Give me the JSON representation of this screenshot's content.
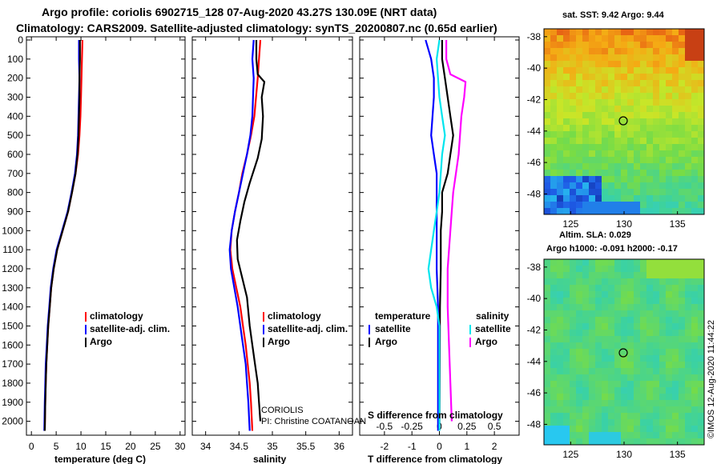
{
  "title_line1": "Argo profile: coriolis 6902715_128 07-Aug-2020 43.27S 130.09E (NRT data)",
  "title_line2": "Climatology: CARS2009. Satellite-adjusted climatology: synTS_20200807.nc (0.65d earlier)",
  "colors": {
    "clim": "#ff0000",
    "sat": "#0000ff",
    "argo": "#000000",
    "sat_s": "#00e5ee",
    "argo_s": "#ff00ff"
  },
  "depth_ticks": [
    "0",
    "100",
    "200",
    "300",
    "400",
    "500",
    "600",
    "700",
    "800",
    "900",
    "1000",
    "1100",
    "1200",
    "1300",
    "1400",
    "1500",
    "1600",
    "1700",
    "1800",
    "1900",
    "2000"
  ],
  "chart_data": [
    {
      "type": "line",
      "panel": "temperature",
      "xlabel": "temperature (deg C)",
      "xlim": [
        -1,
        31
      ],
      "ylim": [
        2050,
        0
      ],
      "xticks": [
        "0",
        "5",
        "10",
        "15",
        "20",
        "25",
        "30"
      ],
      "legend": [
        "climatology",
        "satellite-adj. clim.",
        "Argo"
      ],
      "series": [
        {
          "name": "climatology",
          "color": "#ff0000",
          "points": [
            [
              10.3,
              0
            ],
            [
              10.2,
              100
            ],
            [
              10.1,
              200
            ],
            [
              10.0,
              300
            ],
            [
              9.9,
              400
            ],
            [
              9.7,
              500
            ],
            [
              9.4,
              600
            ],
            [
              8.9,
              700
            ],
            [
              8.2,
              800
            ],
            [
              7.4,
              900
            ],
            [
              6.3,
              1000
            ],
            [
              5.2,
              1100
            ],
            [
              4.5,
              1200
            ],
            [
              4.0,
              1300
            ],
            [
              3.7,
              1400
            ],
            [
              3.4,
              1500
            ],
            [
              3.2,
              1600
            ],
            [
              3.0,
              1700
            ],
            [
              2.9,
              1800
            ],
            [
              2.8,
              1900
            ],
            [
              2.7,
              2050
            ]
          ]
        },
        {
          "name": "satellite-adj. clim.",
          "color": "#0000ff",
          "points": [
            [
              9.6,
              0
            ],
            [
              9.6,
              100
            ],
            [
              9.7,
              200
            ],
            [
              9.6,
              300
            ],
            [
              9.5,
              400
            ],
            [
              9.4,
              500
            ],
            [
              9.2,
              600
            ],
            [
              8.8,
              700
            ],
            [
              8.1,
              800
            ],
            [
              7.3,
              900
            ],
            [
              6.2,
              1000
            ],
            [
              5.1,
              1100
            ],
            [
              4.4,
              1200
            ],
            [
              3.9,
              1300
            ],
            [
              3.6,
              1400
            ],
            [
              3.3,
              1500
            ],
            [
              3.1,
              1600
            ],
            [
              2.9,
              1700
            ],
            [
              2.8,
              1800
            ],
            [
              2.7,
              1900
            ],
            [
              2.6,
              2050
            ]
          ]
        },
        {
          "name": "Argo",
          "color": "#000000",
          "points": [
            [
              9.8,
              0
            ],
            [
              9.8,
              100
            ],
            [
              9.7,
              200
            ],
            [
              9.7,
              300
            ],
            [
              9.6,
              400
            ],
            [
              9.5,
              500
            ],
            [
              9.3,
              600
            ],
            [
              8.9,
              700
            ],
            [
              8.2,
              800
            ],
            [
              7.4,
              900
            ],
            [
              6.3,
              1000
            ],
            [
              5.2,
              1100
            ],
            [
              4.5,
              1200
            ],
            [
              4.0,
              1300
            ],
            [
              3.7,
              1400
            ],
            [
              3.4,
              1500
            ],
            [
              3.2,
              1600
            ],
            [
              3.0,
              1700
            ],
            [
              2.9,
              1800
            ],
            [
              2.8,
              1900
            ],
            [
              2.7,
              2050
            ]
          ]
        }
      ]
    },
    {
      "type": "line",
      "panel": "salinity",
      "xlabel": "salinity",
      "xlim": [
        33.8,
        36.2
      ],
      "ylim": [
        2050,
        0
      ],
      "xticks": [
        "34",
        "34.5",
        "35",
        "35.5",
        "36"
      ],
      "legend": [
        "climatology",
        "satellite-adj. clim.",
        "Argo"
      ],
      "annotations": [
        "CORIOLIS",
        "PI: Christine COATANOAN"
      ],
      "series": [
        {
          "name": "climatology",
          "color": "#ff0000",
          "points": [
            [
              34.82,
              0
            ],
            [
              34.8,
              100
            ],
            [
              34.78,
              200
            ],
            [
              34.73,
              400
            ],
            [
              34.68,
              500
            ],
            [
              34.62,
              600
            ],
            [
              34.55,
              700
            ],
            [
              34.5,
              800
            ],
            [
              34.44,
              900
            ],
            [
              34.39,
              1000
            ],
            [
              34.37,
              1100
            ],
            [
              34.4,
              1200
            ],
            [
              34.46,
              1300
            ],
            [
              34.52,
              1400
            ],
            [
              34.56,
              1500
            ],
            [
              34.6,
              1600
            ],
            [
              34.63,
              1700
            ],
            [
              34.66,
              1800
            ],
            [
              34.68,
              1900
            ],
            [
              34.7,
              2050
            ]
          ]
        },
        {
          "name": "satellite-adj. clim.",
          "color": "#0000ff",
          "points": [
            [
              34.72,
              0
            ],
            [
              34.7,
              100
            ],
            [
              34.72,
              200
            ],
            [
              34.7,
              400
            ],
            [
              34.67,
              500
            ],
            [
              34.62,
              600
            ],
            [
              34.56,
              700
            ],
            [
              34.5,
              800
            ],
            [
              34.44,
              900
            ],
            [
              34.39,
              1000
            ],
            [
              34.36,
              1100
            ],
            [
              34.38,
              1200
            ],
            [
              34.43,
              1300
            ],
            [
              34.48,
              1400
            ],
            [
              34.52,
              1500
            ],
            [
              34.56,
              1600
            ],
            [
              34.6,
              1700
            ],
            [
              34.62,
              1800
            ],
            [
              34.64,
              1900
            ],
            [
              34.66,
              2050
            ]
          ]
        },
        {
          "name": "Argo",
          "color": "#000000",
          "points": [
            [
              34.76,
              0
            ],
            [
              34.76,
              100
            ],
            [
              34.78,
              180
            ],
            [
              34.88,
              220
            ],
            [
              34.84,
              300
            ],
            [
              34.86,
              400
            ],
            [
              34.84,
              520
            ],
            [
              34.78,
              620
            ],
            [
              34.66,
              750
            ],
            [
              34.58,
              850
            ],
            [
              34.52,
              950
            ],
            [
              34.47,
              1050
            ],
            [
              34.48,
              1150
            ],
            [
              34.55,
              1250
            ],
            [
              34.62,
              1350
            ],
            [
              34.66,
              1500
            ],
            [
              34.7,
              1600
            ],
            [
              34.74,
              1700
            ],
            [
              34.78,
              1800
            ],
            [
              34.8,
              1900
            ],
            [
              34.82,
              2000
            ]
          ]
        }
      ]
    },
    {
      "type": "line",
      "panel": "difference",
      "xlabel": "T difference from climatology",
      "xlabel_top": "S difference from climatology",
      "xlim": [
        -2.9,
        2.9
      ],
      "ylim": [
        2050,
        0
      ],
      "xticks": [
        "-2",
        "-1",
        "0",
        "1",
        "2"
      ],
      "xticks_top": [
        "-0.5",
        "-0.25",
        "0",
        "0.25",
        "0.5"
      ],
      "legend": [
        "temperature",
        "satellite",
        "Argo",
        "salinity",
        "satellite",
        "Argo"
      ],
      "series": [
        {
          "name": "temperature satellite",
          "color": "#0000ff",
          "points": [
            [
              -0.5,
              0
            ],
            [
              -0.3,
              100
            ],
            [
              -0.2,
              200
            ],
            [
              -0.2,
              300
            ],
            [
              -0.25,
              400
            ],
            [
              -0.3,
              500
            ],
            [
              -0.2,
              600
            ],
            [
              -0.1,
              700
            ],
            [
              -0.1,
              800
            ],
            [
              -0.1,
              900
            ],
            [
              -0.1,
              1000
            ],
            [
              -0.1,
              1200
            ],
            [
              -0.05,
              1400
            ],
            [
              -0.05,
              2050
            ]
          ]
        },
        {
          "name": "temperature Argo",
          "color": "#000000",
          "points": [
            [
              0.1,
              0
            ],
            [
              0.1,
              100
            ],
            [
              0.2,
              200
            ],
            [
              0.3,
              300
            ],
            [
              0.4,
              400
            ],
            [
              0.5,
              500
            ],
            [
              0.4,
              600
            ],
            [
              0.3,
              700
            ],
            [
              0.1,
              800
            ],
            [
              0.1,
              900
            ],
            [
              0.05,
              1000
            ],
            [
              0.05,
              1200
            ],
            [
              0.02,
              1400
            ],
            [
              0.0,
              2050
            ]
          ]
        },
        {
          "name": "salinity satellite",
          "color": "#00e5ee",
          "points": [
            [
              0.0,
              0
            ],
            [
              -0.1,
              100
            ],
            [
              -0.05,
              200
            ],
            [
              0.0,
              300
            ],
            [
              0.1,
              400
            ],
            [
              0.2,
              500
            ],
            [
              0.1,
              600
            ],
            [
              0.05,
              700
            ],
            [
              0.0,
              800
            ],
            [
              -0.1,
              900
            ],
            [
              -0.2,
              1000
            ],
            [
              -0.3,
              1100
            ],
            [
              -0.4,
              1200
            ],
            [
              -0.3,
              1300
            ],
            [
              -0.1,
              1400
            ],
            [
              0.0,
              1500
            ],
            [
              0.0,
              2050
            ]
          ]
        },
        {
          "name": "salinity Argo",
          "color": "#ff00ff",
          "points": [
            [
              0.25,
              0
            ],
            [
              0.25,
              100
            ],
            [
              0.4,
              180
            ],
            [
              0.95,
              220
            ],
            [
              0.9,
              300
            ],
            [
              0.8,
              400
            ],
            [
              0.75,
              500
            ],
            [
              0.7,
              600
            ],
            [
              0.6,
              700
            ],
            [
              0.5,
              800
            ],
            [
              0.45,
              900
            ],
            [
              0.4,
              1000
            ],
            [
              0.35,
              1100
            ],
            [
              0.3,
              1200
            ],
            [
              0.3,
              1400
            ],
            [
              0.35,
              1600
            ],
            [
              0.4,
              1800
            ],
            [
              0.45,
              2000
            ]
          ]
        }
      ]
    },
    {
      "type": "heatmap",
      "panel": "sst_map",
      "title": "sat. SST: 9.42 Argo: 9.44",
      "xticks": [
        "125",
        "130",
        "135"
      ],
      "yticks": [
        "-38",
        "-40",
        "-42",
        "-44",
        "-46",
        "-48"
      ],
      "xlim": [
        122.5,
        137.5
      ],
      "ylim": [
        -49.3,
        -37.5
      ],
      "marker": [
        130.09,
        -43.27
      ]
    },
    {
      "type": "heatmap",
      "panel": "sla_map",
      "title": "Altim. SLA: 0.029",
      "subtitle": "Argo h1000: -0.091 h2000: -0.17",
      "xticks": [
        "125",
        "130",
        "135"
      ],
      "yticks": [
        "-38",
        "-40",
        "-42",
        "-44",
        "-46",
        "-48"
      ],
      "xlim": [
        122.5,
        137.5
      ],
      "ylim": [
        -49.3,
        -37.5
      ],
      "marker": [
        130.09,
        -43.27
      ]
    }
  ],
  "credit": "©IMOS 12-Aug-2020 11:44:22"
}
